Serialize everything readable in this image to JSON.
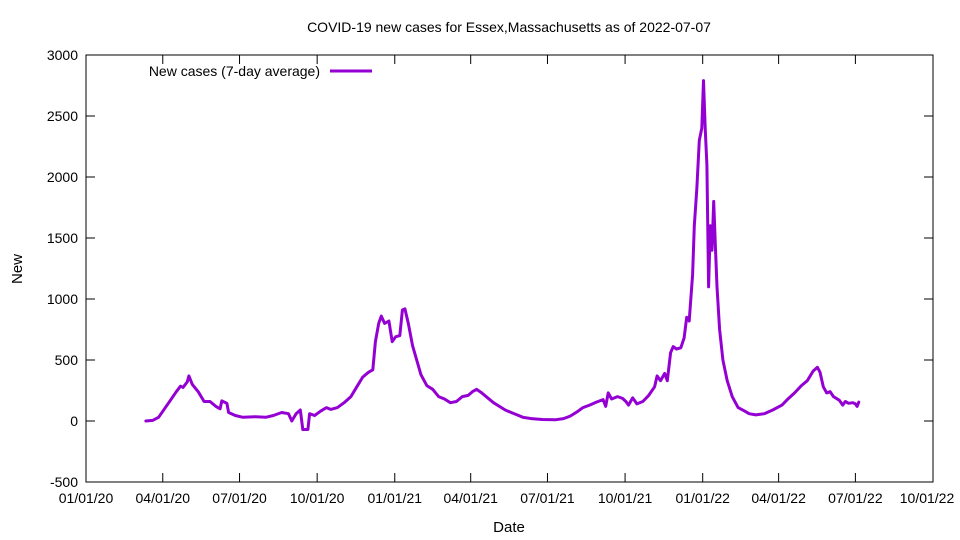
{
  "chart_data": {
    "type": "line",
    "title": "COVID-19 new cases for Essex,Massachusetts as of 2022-07-07",
    "xlabel": "Date",
    "ylabel": "New",
    "x_range": [
      "2020-01-01",
      "2022-10-01"
    ],
    "ylim": [
      -500,
      3000
    ],
    "x_ticks": [
      "01/01/20",
      "04/01/20",
      "07/01/20",
      "10/01/20",
      "01/01/21",
      "04/01/21",
      "07/01/21",
      "10/01/21",
      "01/01/22",
      "04/01/22",
      "07/01/22",
      "10/01/22"
    ],
    "x_tick_dates": [
      "2020-01-01",
      "2020-04-01",
      "2020-07-01",
      "2020-10-01",
      "2021-01-01",
      "2021-04-01",
      "2021-07-01",
      "2021-10-01",
      "2022-01-01",
      "2022-04-01",
      "2022-07-01",
      "2022-10-01"
    ],
    "y_ticks": [
      "-500",
      "0",
      "500",
      "1000",
      "1500",
      "2000",
      "2500",
      "3000"
    ],
    "y_tick_values": [
      -500,
      0,
      500,
      1000,
      1500,
      2000,
      2500,
      3000
    ],
    "grid": false,
    "legend": "top-left",
    "series": [
      {
        "name": "New cases (7-day average)",
        "color": "#9400d3",
        "points": [
          [
            "2020-03-12",
            0
          ],
          [
            "2020-03-20",
            5
          ],
          [
            "2020-03-27",
            30
          ],
          [
            "2020-04-03",
            100
          ],
          [
            "2020-04-10",
            170
          ],
          [
            "2020-04-17",
            240
          ],
          [
            "2020-04-22",
            285
          ],
          [
            "2020-04-25",
            275
          ],
          [
            "2020-04-30",
            320
          ],
          [
            "2020-05-02",
            370
          ],
          [
            "2020-05-06",
            300
          ],
          [
            "2020-05-13",
            240
          ],
          [
            "2020-05-20",
            160
          ],
          [
            "2020-05-27",
            160
          ],
          [
            "2020-06-03",
            120
          ],
          [
            "2020-06-08",
            100
          ],
          [
            "2020-06-10",
            165
          ],
          [
            "2020-06-16",
            145
          ],
          [
            "2020-06-18",
            70
          ],
          [
            "2020-06-26",
            45
          ],
          [
            "2020-07-05",
            30
          ],
          [
            "2020-07-20",
            35
          ],
          [
            "2020-08-01",
            30
          ],
          [
            "2020-08-10",
            45
          ],
          [
            "2020-08-20",
            70
          ],
          [
            "2020-08-28",
            60
          ],
          [
            "2020-09-01",
            0
          ],
          [
            "2020-09-06",
            60
          ],
          [
            "2020-09-11",
            90
          ],
          [
            "2020-09-14",
            -70
          ],
          [
            "2020-09-20",
            -70
          ],
          [
            "2020-09-22",
            60
          ],
          [
            "2020-09-28",
            45
          ],
          [
            "2020-10-05",
            80
          ],
          [
            "2020-10-12",
            110
          ],
          [
            "2020-10-17",
            95
          ],
          [
            "2020-10-25",
            110
          ],
          [
            "2020-11-02",
            150
          ],
          [
            "2020-11-10",
            200
          ],
          [
            "2020-11-17",
            280
          ],
          [
            "2020-11-24",
            360
          ],
          [
            "2020-12-01",
            400
          ],
          [
            "2020-12-06",
            420
          ],
          [
            "2020-12-09",
            650
          ],
          [
            "2020-12-13",
            800
          ],
          [
            "2020-12-16",
            860
          ],
          [
            "2020-12-20",
            800
          ],
          [
            "2020-12-25",
            820
          ],
          [
            "2020-12-29",
            650
          ],
          [
            "2021-01-02",
            690
          ],
          [
            "2021-01-07",
            700
          ],
          [
            "2021-01-10",
            910
          ],
          [
            "2021-01-13",
            920
          ],
          [
            "2021-01-17",
            800
          ],
          [
            "2021-01-22",
            620
          ],
          [
            "2021-01-27",
            500
          ],
          [
            "2021-02-01",
            380
          ],
          [
            "2021-02-08",
            290
          ],
          [
            "2021-02-15",
            260
          ],
          [
            "2021-02-22",
            200
          ],
          [
            "2021-03-01",
            180
          ],
          [
            "2021-03-08",
            150
          ],
          [
            "2021-03-15",
            160
          ],
          [
            "2021-03-22",
            200
          ],
          [
            "2021-03-29",
            210
          ],
          [
            "2021-04-03",
            240
          ],
          [
            "2021-04-08",
            260
          ],
          [
            "2021-04-14",
            230
          ],
          [
            "2021-04-21",
            190
          ],
          [
            "2021-04-28",
            150
          ],
          [
            "2021-05-05",
            120
          ],
          [
            "2021-05-12",
            90
          ],
          [
            "2021-05-19",
            70
          ],
          [
            "2021-05-26",
            50
          ],
          [
            "2021-06-02",
            30
          ],
          [
            "2021-06-12",
            20
          ],
          [
            "2021-06-25",
            12
          ],
          [
            "2021-07-10",
            10
          ],
          [
            "2021-07-20",
            20
          ],
          [
            "2021-07-28",
            40
          ],
          [
            "2021-08-05",
            75
          ],
          [
            "2021-08-12",
            110
          ],
          [
            "2021-08-20",
            130
          ],
          [
            "2021-08-28",
            155
          ],
          [
            "2021-09-05",
            175
          ],
          [
            "2021-09-08",
            120
          ],
          [
            "2021-09-11",
            230
          ],
          [
            "2021-09-15",
            180
          ],
          [
            "2021-09-22",
            200
          ],
          [
            "2021-09-28",
            185
          ],
          [
            "2021-10-02",
            160
          ],
          [
            "2021-10-05",
            130
          ],
          [
            "2021-10-10",
            190
          ],
          [
            "2021-10-15",
            140
          ],
          [
            "2021-10-22",
            160
          ],
          [
            "2021-10-29",
            210
          ],
          [
            "2021-11-05",
            280
          ],
          [
            "2021-11-08",
            370
          ],
          [
            "2021-11-12",
            330
          ],
          [
            "2021-11-17",
            390
          ],
          [
            "2021-11-20",
            330
          ],
          [
            "2021-11-24",
            560
          ],
          [
            "2021-11-27",
            610
          ],
          [
            "2021-12-01",
            590
          ],
          [
            "2021-12-06",
            600
          ],
          [
            "2021-12-10",
            680
          ],
          [
            "2021-12-13",
            850
          ],
          [
            "2021-12-16",
            820
          ],
          [
            "2021-12-20",
            1200
          ],
          [
            "2021-12-22",
            1600
          ],
          [
            "2021-12-25",
            1900
          ],
          [
            "2021-12-28",
            2300
          ],
          [
            "2021-12-31",
            2400
          ],
          [
            "2022-01-02",
            2790
          ],
          [
            "2022-01-04",
            2400
          ],
          [
            "2022-01-06",
            2100
          ],
          [
            "2022-01-08",
            1100
          ],
          [
            "2022-01-10",
            1600
          ],
          [
            "2022-01-12",
            1400
          ],
          [
            "2022-01-14",
            1800
          ],
          [
            "2022-01-16",
            1450
          ],
          [
            "2022-01-18",
            1100
          ],
          [
            "2022-01-21",
            750
          ],
          [
            "2022-01-25",
            500
          ],
          [
            "2022-01-30",
            330
          ],
          [
            "2022-02-05",
            200
          ],
          [
            "2022-02-12",
            110
          ],
          [
            "2022-02-20",
            80
          ],
          [
            "2022-02-25",
            60
          ],
          [
            "2022-03-05",
            50
          ],
          [
            "2022-03-15",
            60
          ],
          [
            "2022-03-25",
            90
          ],
          [
            "2022-04-05",
            130
          ],
          [
            "2022-04-12",
            180
          ],
          [
            "2022-04-20",
            230
          ],
          [
            "2022-04-28",
            290
          ],
          [
            "2022-05-05",
            330
          ],
          [
            "2022-05-12",
            410
          ],
          [
            "2022-05-17",
            440
          ],
          [
            "2022-05-20",
            400
          ],
          [
            "2022-05-24",
            280
          ],
          [
            "2022-05-28",
            230
          ],
          [
            "2022-06-01",
            240
          ],
          [
            "2022-06-05",
            200
          ],
          [
            "2022-06-12",
            170
          ],
          [
            "2022-06-16",
            130
          ],
          [
            "2022-06-19",
            160
          ],
          [
            "2022-06-23",
            145
          ],
          [
            "2022-06-28",
            150
          ],
          [
            "2022-07-01",
            140
          ],
          [
            "2022-07-03",
            120
          ],
          [
            "2022-07-05",
            155
          ]
        ]
      }
    ]
  }
}
